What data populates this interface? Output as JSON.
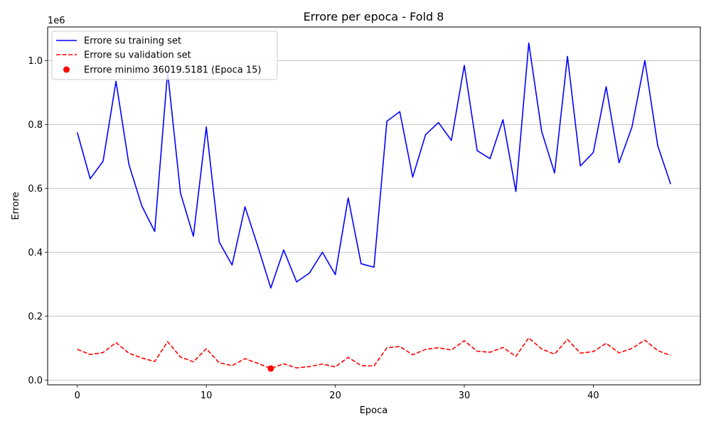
{
  "chart_data": {
    "type": "line",
    "title": "Errore per epoca - Fold 8",
    "xlabel": "Epoca",
    "ylabel": "Errore",
    "y_offset_label": "1e6",
    "xlim": [
      -2.3,
      48.3
    ],
    "ylim": [
      -15000,
      1105000
    ],
    "x_ticks": [
      0,
      10,
      20,
      30,
      40
    ],
    "x_tick_labels": [
      "0",
      "10",
      "20",
      "30",
      "40"
    ],
    "y_ticks": [
      0,
      200000,
      400000,
      600000,
      800000,
      1000000
    ],
    "y_tick_labels": [
      "0.0",
      "0.2",
      "0.4",
      "0.6",
      "0.8",
      "1.0"
    ],
    "grid": "y-major",
    "legend_position": "top-left",
    "x": [
      0,
      1,
      2,
      3,
      4,
      5,
      6,
      7,
      8,
      9,
      10,
      11,
      12,
      13,
      14,
      15,
      16,
      17,
      18,
      19,
      20,
      21,
      22,
      23,
      24,
      25,
      26,
      27,
      28,
      29,
      30,
      31,
      32,
      33,
      34,
      35,
      36,
      37,
      38,
      39,
      40,
      41,
      42,
      43,
      44,
      45,
      46
    ],
    "series": [
      {
        "name": "Errore su training set",
        "color": "#0000ff",
        "style": "solid",
        "values": [
          775000,
          630000,
          685000,
          935000,
          675000,
          545000,
          465000,
          965000,
          585000,
          450000,
          792000,
          432000,
          360000,
          542000,
          418000,
          288000,
          407000,
          307000,
          335000,
          400000,
          330000,
          570000,
          364000,
          353000,
          810000,
          840000,
          635000,
          768000,
          806000,
          750000,
          985000,
          718000,
          693000,
          815000,
          590000,
          1055000,
          778000,
          648000,
          1013000,
          670000,
          712000,
          918000,
          680000,
          792000,
          1000000,
          733000,
          613000
        ]
      },
      {
        "name": "Errore su validation set",
        "color": "#ff0000",
        "style": "dashed",
        "values": [
          96000,
          80000,
          86000,
          117000,
          84000,
          69000,
          58000,
          120000,
          72000,
          57000,
          98000,
          54000,
          45000,
          67000,
          52000,
          36019.5181,
          51000,
          38000,
          42000,
          50000,
          41000,
          71000,
          45000,
          44000,
          101000,
          105000,
          79000,
          96000,
          101000,
          94000,
          123000,
          90000,
          87000,
          102000,
          74000,
          132000,
          97000,
          81000,
          127000,
          84000,
          89000,
          115000,
          85000,
          99000,
          125000,
          92000,
          77000
        ]
      }
    ],
    "min_point": {
      "name": "Errore minimo 36019.5181 (Epoca 15)",
      "x": 15,
      "y": 36019.5181,
      "color": "#ff0000"
    }
  }
}
